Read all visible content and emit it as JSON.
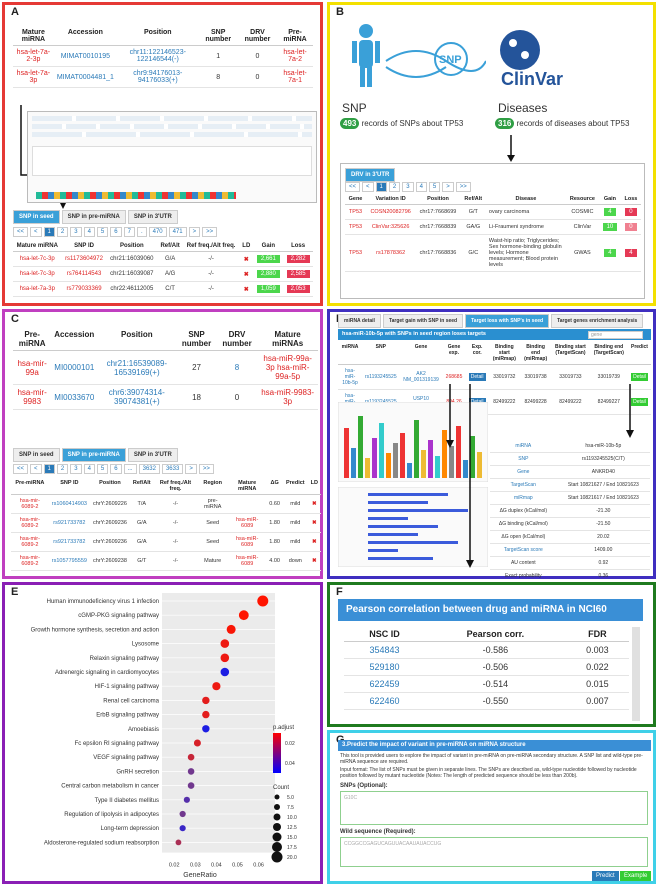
{
  "panelA": {
    "label": "A",
    "headers": [
      "Mature miRNA",
      "Accession",
      "Position",
      "SNP number",
      "DRV number",
      "Pre-miRNA"
    ],
    "rows": [
      [
        "hsa-let-7a-2-3p",
        "MIMAT0010195",
        "chr11:122146523-122146544(-)",
        "1",
        "0",
        "hsa-let-7a-2"
      ],
      [
        "hsa-let-7a-3p",
        "MIMAT0004481_1",
        "chr9:94176013-94176033(+)",
        "8",
        "0",
        "hsa-let-7a-1"
      ]
    ],
    "tabs": [
      "SNP in seed",
      "SNP in pre-miRNA",
      "SNP in 3'UTR"
    ],
    "pages": [
      "<<",
      "<",
      "1",
      "2",
      "3",
      "4",
      "5",
      "6",
      "7",
      ".",
      "470",
      "471",
      ">",
      ">>"
    ],
    "snp_headers": [
      "Mature miRNA",
      "SNP ID",
      "Position",
      "Ref/Alt",
      "Ref freq./Alt freq.",
      "LD",
      "Gain",
      "Loss"
    ],
    "snp_rows": [
      [
        "hsa-let-7c-3p",
        "rs1173604972",
        "chr21:16039060",
        "G/A",
        "-/-",
        "2,661",
        "2,282"
      ],
      [
        "hsa-let-7c-3p",
        "rs764114543",
        "chr21:16039087",
        "A/G",
        "-/-",
        "2,880",
        "2,585"
      ],
      [
        "hsa-let-7a-3p",
        "rs779033369",
        "chr22:46112005",
        "C/T",
        "-/-",
        "1,059",
        "2,053"
      ]
    ]
  },
  "panelB": {
    "label": "B",
    "snp_title": "SNP",
    "snp_count": "493",
    "snp_text": "records of SNPs about TP53",
    "dis_title": "Diseases",
    "dis_count": "316",
    "dis_text": "records of diseases about TP53",
    "clinvar": "ClinVar",
    "snp_logo": "SNP",
    "drv_tab": "DRV in 3'UTR",
    "drv_headers": [
      "Gene",
      "Variation ID",
      "Position",
      "Ref/Alt",
      "Disease",
      "Resource",
      "Gain",
      "Loss"
    ],
    "drv_rows": [
      [
        "TP53",
        "COSN20082796",
        "chr17:7668699",
        "G/T",
        "ovary carcinoma",
        "COSMIC",
        "4",
        "0"
      ],
      [
        "TP53",
        "ClinVar:325626",
        "chr17:7668839",
        "GA/G",
        "Li-Fraumeni syndrome",
        "ClinVar",
        "10",
        "0"
      ],
      [
        "TP53",
        "rs17878362",
        "chr17:7668836",
        "G/C",
        "Waist-hip ratio; Triglycerides; Sex hormone-binding globulin levels; Hormone measurement; Blood protein levels",
        "GWAS",
        "4",
        "4"
      ]
    ]
  },
  "panelC": {
    "label": "C",
    "headers": [
      "Pre-miRNA",
      "Accession",
      "Position",
      "SNP number",
      "DRV number",
      "Mature miRNAs"
    ],
    "rows": [
      [
        "hsa-mir-99a",
        "MI0000101",
        "chr21:16539089-16539169(+)",
        "27",
        "8",
        "hsa-miR-99a-3p hsa-miR-99a-5p"
      ],
      [
        "hsa-mir-9983",
        "MI0033670",
        "chr6:39074314-39074381(+)",
        "18",
        "0",
        "hsa-miR-9983-3p"
      ]
    ],
    "tabs": [
      "SNP in seed",
      "SNP in pre-miRNA",
      "SNP in 3'UTR"
    ],
    "pages": [
      "<<",
      "<",
      "1",
      "2",
      "3",
      "4",
      "5",
      "6",
      "...",
      "3632",
      "3633",
      ">",
      ">>"
    ],
    "snp_headers": [
      "Pre-miRNA",
      "SNP ID",
      "Position",
      "Ref/Alt",
      "Ref freq./Alt freq.",
      "Region",
      "Mature miRNA",
      "ΔG",
      "Predict",
      "LD"
    ],
    "snp_rows": [
      [
        "hsa-mir-6089-2",
        "rs1060414903",
        "chrY:2609226",
        "T/A",
        "-/-",
        "pre-miRNA",
        "",
        "0.60",
        "mild"
      ],
      [
        "hsa-mir-6089-2",
        "rs921733782",
        "chrY:2609236",
        "G/A",
        "-/-",
        "Seed",
        "hsa-miR-6089",
        "1.80",
        "mild"
      ],
      [
        "hsa-mir-6089-2",
        "rs921733782",
        "chrY:2609236",
        "G/A",
        "-/-",
        "Seed",
        "hsa-miR-6089",
        "1.80",
        "mild"
      ],
      [
        "hsa-mir-6089-2",
        "rs1057795559",
        "chrY:2609238",
        "G/T",
        "-/-",
        "Mature",
        "hsa-miR-6089",
        "4.00",
        "down"
      ]
    ]
  },
  "panelD": {
    "label": "D",
    "tabs": [
      "miRNA detail",
      "Target gain with SNP in seed",
      "Target loss with SNP's in seed",
      "Target genes enrichment analysis"
    ],
    "bar_title": "hsa-miR-10b-5p with SNPs in seed region loses targets",
    "headers": [
      "miRNA",
      "SNP",
      "Gene",
      "Gene exp.",
      "Exp. cor.",
      "Binding start (miRmap)",
      "Binding end (miRmap)",
      "Binding start (TargetScan)",
      "Binding end (TargetScan)",
      "Predict"
    ],
    "rows": [
      [
        "hsa-miR-10b-5p",
        "rs1193245525",
        "AK2 NM_001319139",
        "268685",
        "Detail",
        "33019732",
        "33019738",
        "33019733",
        "33019739",
        "Detail"
      ],
      [
        "hsa-miR-10b-5p",
        "rs1193245525",
        "USP10 NM_001350180",
        "894.26",
        "Detail",
        "82499222",
        "82499228",
        "82499222",
        "82499227",
        "Detail"
      ]
    ],
    "detail": [
      [
        "miRNA",
        "hsa-miR-10b-5p"
      ],
      [
        "SNP",
        "rs1193245525(C/T)"
      ],
      [
        "Gene",
        "ANKRD40"
      ],
      [
        "TargetScan",
        "Start 10821627 / End 10821623"
      ],
      [
        "miRmap",
        "Start 10821617 / End 10821623"
      ],
      [
        "ΔG duplex (kCal/mol)",
        "-21.30"
      ],
      [
        "ΔG binding (kCal/mol)",
        "-21.50"
      ],
      [
        "ΔG open (kCal/mol)",
        "20.02"
      ],
      [
        "TargetScan score",
        "1409.00"
      ],
      [
        "AU content",
        "0.92"
      ],
      [
        "Exact probability",
        "0.36"
      ]
    ]
  },
  "panelE": {
    "label": "E",
    "xlabel": "GeneRatio",
    "legend_padj": "p.adjust",
    "legend_count": "Count",
    "padj_ticks": [
      "0.02",
      "0.04"
    ],
    "count_ticks": [
      "5.0",
      "7.5",
      "10.0",
      "12.5",
      "15.0",
      "17.5",
      "20.0"
    ],
    "xticks": [
      "0.02",
      "0.03",
      "0.04",
      "0.05",
      "0.06"
    ],
    "chart_data": {
      "type": "scatter",
      "xlabel": "GeneRatio",
      "xlim": [
        0.018,
        0.064
      ],
      "categories": [
        "Human immunodeficiency virus 1 infection",
        "cGMP-PKG signaling pathway",
        "Growth hormone synthesis, secretion and action",
        "Lysosome",
        "Relaxin signaling pathway",
        "Adrenergic signaling in cardiomyocytes",
        "HIF-1 signaling pathway",
        "Renal cell carcinoma",
        "ErbB signaling pathway",
        "Amoebiasis",
        "Fc epsilon RI signaling pathway",
        "VEGF signaling pathway",
        "GnRH secretion",
        "Central carbon metabolism in cancer",
        "Type II diabetes mellitus",
        "Regulation of lipolysis in adipocytes",
        "Long-term depression",
        "Aldosterone-regulated sodium reabsorption"
      ],
      "x": [
        0.062,
        0.053,
        0.047,
        0.044,
        0.044,
        0.044,
        0.04,
        0.035,
        0.035,
        0.035,
        0.031,
        0.028,
        0.028,
        0.028,
        0.026,
        0.024,
        0.024,
        0.022
      ],
      "count": [
        20,
        17,
        15,
        14,
        14,
        14,
        13,
        11,
        11,
        11,
        10,
        9,
        9,
        9,
        8,
        8,
        8,
        7
      ],
      "padj": [
        0.005,
        0.005,
        0.006,
        0.008,
        0.008,
        0.045,
        0.008,
        0.01,
        0.01,
        0.045,
        0.012,
        0.015,
        0.03,
        0.03,
        0.035,
        0.03,
        0.04,
        0.02
      ]
    }
  },
  "panelF": {
    "label": "F",
    "title": "Pearson correlation between drug and miRNA in NCI60",
    "headers": [
      "NSC ID",
      "Pearson corr.",
      "FDR"
    ],
    "rows": [
      [
        "354843",
        "-0.586",
        "0.003"
      ],
      [
        "529180",
        "-0.506",
        "0.022"
      ],
      [
        "622459",
        "-0.514",
        "0.015"
      ],
      [
        "622460",
        "-0.550",
        "0.007"
      ]
    ]
  },
  "panelG": {
    "label": "G",
    "title": "3.Predict the impact of variant in pre-miRNA on miRNA structure",
    "desc": "This tool is provided users to explore the impact of variant in pre-miRNA on pre-miRNA secondary structure. A SNP list and wild-type pre-miRNA sequence are required.",
    "desc2": "Input format: The list of SNPs must be given in separate lines. The SNPs are described as, wild-type nucleotide followed by nucleotide position followed by mutant nucleotide (Notes: The length of predicted sequence should be less than 200b).",
    "snps_label": "SNPs (Optional):",
    "snps_ph": "G10C",
    "wild_label": "Wild sequence (Required):",
    "wild_ph": "CCGGCCGAGUCAGUUACAAUAUACCUG",
    "predict": "Predict",
    "example": "Example"
  }
}
